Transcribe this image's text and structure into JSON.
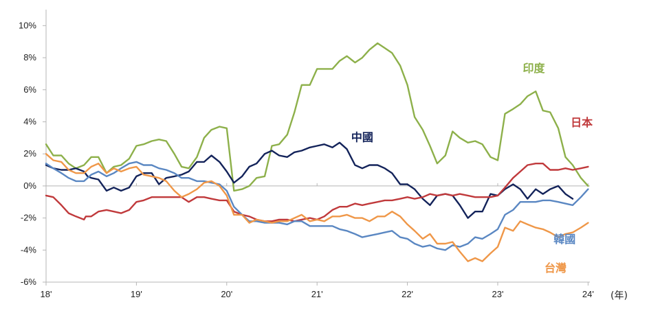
{
  "chart_data": {
    "type": "line",
    "xlabel": "",
    "x_unit_label": "(年)",
    "ylabel": "",
    "ylim": [
      -6,
      11
    ],
    "xlim": [
      2018,
      2024.02
    ],
    "grid": false,
    "yticks": [
      {
        "value": -6,
        "label": "-6%"
      },
      {
        "value": -4,
        "label": "-4%"
      },
      {
        "value": -2,
        "label": "-2%"
      },
      {
        "value": 0,
        "label": "0%"
      },
      {
        "value": 2,
        "label": "2%"
      },
      {
        "value": 4,
        "label": "4%"
      },
      {
        "value": 6,
        "label": "6%"
      },
      {
        "value": 8,
        "label": "8%"
      },
      {
        "value": 10,
        "label": "10%"
      }
    ],
    "xticks": [
      {
        "value": 2018,
        "label": "18'"
      },
      {
        "value": 2019,
        "label": "19'"
      },
      {
        "value": 2020,
        "label": "20'"
      },
      {
        "value": 2021,
        "label": "21'"
      },
      {
        "value": 2022,
        "label": "22'"
      },
      {
        "value": 2023,
        "label": "23'"
      },
      {
        "value": 2024,
        "label": "24'"
      }
    ],
    "series": [
      {
        "name": "印度",
        "color": "#8db04a",
        "label_pos": [
          2023.4,
          7.1
        ],
        "x": [
          2018.0,
          2018.08,
          2018.17,
          2018.25,
          2018.33,
          2018.42,
          2018.5,
          2018.58,
          2018.67,
          2018.75,
          2018.83,
          2018.92,
          2019.0,
          2019.08,
          2019.17,
          2019.25,
          2019.33,
          2019.42,
          2019.5,
          2019.58,
          2019.67,
          2019.75,
          2019.83,
          2019.92,
          2020.0,
          2020.08,
          2020.17,
          2020.25,
          2020.33,
          2020.42,
          2020.5,
          2020.58,
          2020.67,
          2020.75,
          2020.83,
          2020.92,
          2021.0,
          2021.08,
          2021.17,
          2021.25,
          2021.33,
          2021.42,
          2021.5,
          2021.58,
          2021.67,
          2021.75,
          2021.83,
          2021.92,
          2022.0,
          2022.08,
          2022.17,
          2022.25,
          2022.33,
          2022.42,
          2022.5,
          2022.58,
          2022.67,
          2022.75,
          2022.83,
          2022.92,
          2023.0,
          2023.08,
          2023.17,
          2023.25,
          2023.33,
          2023.42,
          2023.5,
          2023.58,
          2023.67,
          2023.75,
          2023.83,
          2023.92,
          2024.0
        ],
        "y": [
          2.6,
          1.9,
          1.9,
          1.4,
          1.1,
          1.3,
          1.8,
          1.8,
          0.8,
          1.2,
          1.3,
          1.7,
          2.5,
          2.6,
          2.8,
          2.9,
          2.8,
          2.0,
          1.2,
          1.1,
          1.8,
          3.0,
          3.5,
          3.7,
          3.6,
          -0.3,
          -0.2,
          0.0,
          0.5,
          0.6,
          2.5,
          2.6,
          3.2,
          4.6,
          6.3,
          6.3,
          7.3,
          7.3,
          7.3,
          7.8,
          8.1,
          7.7,
          8.0,
          8.5,
          8.9,
          8.6,
          8.3,
          7.5,
          6.3,
          4.3,
          3.5,
          2.5,
          1.4,
          1.9,
          3.4,
          3.0,
          2.7,
          2.8,
          2.6,
          1.8,
          1.6,
          4.5,
          4.8,
          5.1,
          5.6,
          5.9,
          4.7,
          4.6,
          3.6,
          1.8,
          1.3,
          0.5,
          0.0
        ]
      },
      {
        "name": "中國",
        "color": "#13235a",
        "label_pos": [
          2021.5,
          2.8
        ],
        "x": [
          2018.0,
          2018.08,
          2018.17,
          2018.25,
          2018.33,
          2018.42,
          2018.46,
          2018.5,
          2018.58,
          2018.67,
          2018.75,
          2018.83,
          2018.92,
          2019.0,
          2019.08,
          2019.17,
          2019.25,
          2019.33,
          2019.42,
          2019.5,
          2019.58,
          2019.67,
          2019.75,
          2019.83,
          2019.92,
          2020.0,
          2020.08,
          2020.17,
          2020.25,
          2020.33,
          2020.42,
          2020.5,
          2020.58,
          2020.67,
          2020.75,
          2020.83,
          2020.92,
          2021.0,
          2021.08,
          2021.17,
          2021.25,
          2021.33,
          2021.42,
          2021.5,
          2021.58,
          2021.67,
          2021.75,
          2021.83,
          2021.92,
          2022.0,
          2022.08,
          2022.17,
          2022.25,
          2022.33,
          2022.42,
          2022.5,
          2022.58,
          2022.67,
          2022.75,
          2022.83,
          2022.92,
          2023.0,
          2023.08,
          2023.17,
          2023.25,
          2023.33,
          2023.42,
          2023.5,
          2023.58,
          2023.67,
          2023.75,
          2023.83,
          2023.92
        ],
        "y": [
          1.3,
          1.1,
          1.0,
          1.0,
          1.1,
          0.9,
          0.6,
          0.5,
          0.4,
          -0.3,
          -0.1,
          -0.3,
          -0.1,
          0.6,
          0.8,
          0.8,
          0.1,
          0.5,
          0.6,
          0.7,
          0.9,
          1.5,
          1.5,
          1.9,
          1.5,
          0.9,
          0.2,
          0.6,
          1.2,
          1.4,
          2.0,
          2.2,
          1.9,
          1.8,
          2.1,
          2.2,
          2.4,
          2.5,
          2.6,
          2.4,
          2.7,
          2.3,
          1.3,
          1.1,
          1.3,
          1.3,
          1.1,
          0.8,
          0.1,
          0.1,
          -0.2,
          -0.8,
          -1.2,
          -0.6,
          -0.5,
          -0.6,
          -1.2,
          -2.0,
          -1.6,
          -1.6,
          -0.5,
          -0.6,
          -0.2,
          0.1,
          -0.2,
          -0.8,
          -0.2,
          -0.5,
          -0.2,
          0.0,
          -0.5,
          -0.8,
          null
        ]
      },
      {
        "name": "日本",
        "color": "#c0393b",
        "label_pos": [
          2023.93,
          3.73
        ],
        "x": [
          2018.0,
          2018.08,
          2018.17,
          2018.25,
          2018.33,
          2018.42,
          2018.44,
          2018.5,
          2018.58,
          2018.67,
          2018.75,
          2018.83,
          2018.92,
          2019.0,
          2019.08,
          2019.17,
          2019.25,
          2019.33,
          2019.42,
          2019.5,
          2019.58,
          2019.67,
          2019.75,
          2019.83,
          2019.92,
          2020.0,
          2020.08,
          2020.17,
          2020.25,
          2020.33,
          2020.42,
          2020.5,
          2020.58,
          2020.67,
          2020.75,
          2020.83,
          2020.92,
          2021.0,
          2021.08,
          2021.17,
          2021.25,
          2021.33,
          2021.42,
          2021.5,
          2021.58,
          2021.67,
          2021.75,
          2021.83,
          2021.92,
          2022.0,
          2022.08,
          2022.17,
          2022.25,
          2022.33,
          2022.42,
          2022.5,
          2022.58,
          2022.67,
          2022.75,
          2022.83,
          2022.92,
          2023.0,
          2023.08,
          2023.17,
          2023.25,
          2023.33,
          2023.42,
          2023.5,
          2023.58,
          2023.67,
          2023.75,
          2023.83,
          2023.92,
          2024.0
        ],
        "y": [
          -0.6,
          -0.7,
          -1.2,
          -1.7,
          -1.9,
          -2.1,
          -1.9,
          -1.9,
          -1.6,
          -1.5,
          -1.6,
          -1.7,
          -1.5,
          -1.0,
          -0.9,
          -0.7,
          -0.7,
          -0.7,
          -0.7,
          -0.7,
          -1.0,
          -0.7,
          -0.7,
          -0.8,
          -0.9,
          -0.9,
          -1.6,
          -1.8,
          -1.9,
          -2.1,
          -2.2,
          -2.2,
          -2.1,
          -2.1,
          -2.2,
          -2.1,
          -2.0,
          -2.1,
          -1.9,
          -1.5,
          -1.3,
          -1.3,
          -1.1,
          -1.2,
          -1.1,
          -1.0,
          -0.9,
          -0.9,
          -0.8,
          -0.7,
          -0.8,
          -0.7,
          -0.5,
          -0.6,
          -0.5,
          -0.6,
          -0.5,
          -0.6,
          -0.7,
          -0.7,
          -0.7,
          -0.6,
          -0.1,
          0.5,
          0.9,
          1.3,
          1.4,
          1.4,
          1.0,
          1.0,
          1.1,
          1.0,
          1.1,
          1.2
        ]
      },
      {
        "name": "韓國",
        "color": "#5a87c2",
        "label_pos": [
          2023.74,
          -3.56
        ],
        "x": [
          2018.0,
          2018.08,
          2018.17,
          2018.25,
          2018.33,
          2018.42,
          2018.5,
          2018.58,
          2018.67,
          2018.75,
          2018.83,
          2018.92,
          2019.0,
          2019.08,
          2019.17,
          2019.25,
          2019.33,
          2019.42,
          2019.5,
          2019.58,
          2019.67,
          2019.75,
          2019.83,
          2019.92,
          2020.0,
          2020.08,
          2020.17,
          2020.25,
          2020.33,
          2020.42,
          2020.5,
          2020.58,
          2020.67,
          2020.75,
          2020.83,
          2020.92,
          2021.0,
          2021.08,
          2021.17,
          2021.25,
          2021.33,
          2021.42,
          2021.5,
          2021.58,
          2021.67,
          2021.75,
          2021.83,
          2021.92,
          2022.0,
          2022.08,
          2022.17,
          2022.25,
          2022.33,
          2022.42,
          2022.5,
          2022.58,
          2022.67,
          2022.75,
          2022.83,
          2022.92,
          2023.0,
          2023.08,
          2023.17,
          2023.25,
          2023.33,
          2023.42,
          2023.5,
          2023.58,
          2023.67,
          2023.75,
          2023.83,
          2023.92,
          2024.0
        ],
        "y": [
          1.4,
          1.1,
          0.8,
          0.5,
          0.3,
          0.3,
          0.7,
          0.9,
          0.6,
          0.8,
          1.1,
          1.4,
          1.5,
          1.3,
          1.3,
          1.1,
          1.0,
          0.8,
          0.5,
          0.5,
          0.3,
          0.3,
          0.2,
          0.1,
          -0.3,
          -1.3,
          -1.8,
          -2.2,
          -2.2,
          -2.3,
          -2.3,
          -2.3,
          -2.4,
          -2.2,
          -2.2,
          -2.5,
          -2.5,
          -2.5,
          -2.5,
          -2.7,
          -2.8,
          -3.0,
          -3.2,
          -3.1,
          -3.0,
          -2.9,
          -2.8,
          -3.2,
          -3.3,
          -3.6,
          -3.8,
          -3.7,
          -3.9,
          -4.0,
          -3.7,
          -3.8,
          -3.6,
          -3.2,
          -3.3,
          -3.0,
          -2.7,
          -1.8,
          -1.5,
          -1.0,
          -1.0,
          -1.0,
          -0.9,
          -0.9,
          -1.0,
          -1.1,
          -1.2,
          -0.7,
          -0.2
        ]
      },
      {
        "name": "台灣",
        "color": "#ef9748",
        "label_pos": [
          2023.64,
          -5.36
        ],
        "x": [
          2018.0,
          2018.08,
          2018.17,
          2018.25,
          2018.33,
          2018.42,
          2018.5,
          2018.58,
          2018.67,
          2018.75,
          2018.83,
          2018.92,
          2019.0,
          2019.08,
          2019.17,
          2019.25,
          2019.33,
          2019.42,
          2019.5,
          2019.58,
          2019.67,
          2019.75,
          2019.83,
          2019.92,
          2020.0,
          2020.08,
          2020.17,
          2020.25,
          2020.33,
          2020.42,
          2020.5,
          2020.58,
          2020.67,
          2020.75,
          2020.83,
          2020.92,
          2021.0,
          2021.08,
          2021.17,
          2021.25,
          2021.33,
          2021.42,
          2021.5,
          2021.58,
          2021.67,
          2021.75,
          2021.83,
          2021.92,
          2022.0,
          2022.08,
          2022.17,
          2022.25,
          2022.33,
          2022.42,
          2022.5,
          2022.58,
          2022.67,
          2022.75,
          2022.83,
          2022.92,
          2023.0,
          2023.08,
          2023.17,
          2023.25,
          2023.33,
          2023.42,
          2023.5,
          2023.58,
          2023.67,
          2023.75,
          2023.83,
          2023.92,
          2024.0
        ],
        "y": [
          2.0,
          1.6,
          1.5,
          1.0,
          0.8,
          0.8,
          1.2,
          1.4,
          0.8,
          1.1,
          0.9,
          1.1,
          1.2,
          0.7,
          0.6,
          0.5,
          0.3,
          -0.3,
          -0.7,
          -0.5,
          -0.2,
          0.2,
          0.3,
          0.0,
          -0.6,
          -1.8,
          -1.8,
          -2.3,
          -2.1,
          -2.2,
          -2.3,
          -2.2,
          -2.2,
          -2.0,
          -1.8,
          -2.2,
          -2.1,
          -2.2,
          -1.9,
          -1.9,
          -1.8,
          -2.0,
          -2.0,
          -2.2,
          -1.9,
          -1.9,
          -1.6,
          -1.9,
          -2.4,
          -2.8,
          -3.3,
          -3.0,
          -3.6,
          -3.6,
          -3.5,
          -4.1,
          -4.7,
          -4.5,
          -4.7,
          -4.2,
          -3.8,
          -2.6,
          -2.8,
          -2.2,
          -2.4,
          -2.6,
          -2.7,
          -2.9,
          -3.2,
          -3.0,
          -2.9,
          -2.6,
          -2.3
        ]
      }
    ]
  }
}
